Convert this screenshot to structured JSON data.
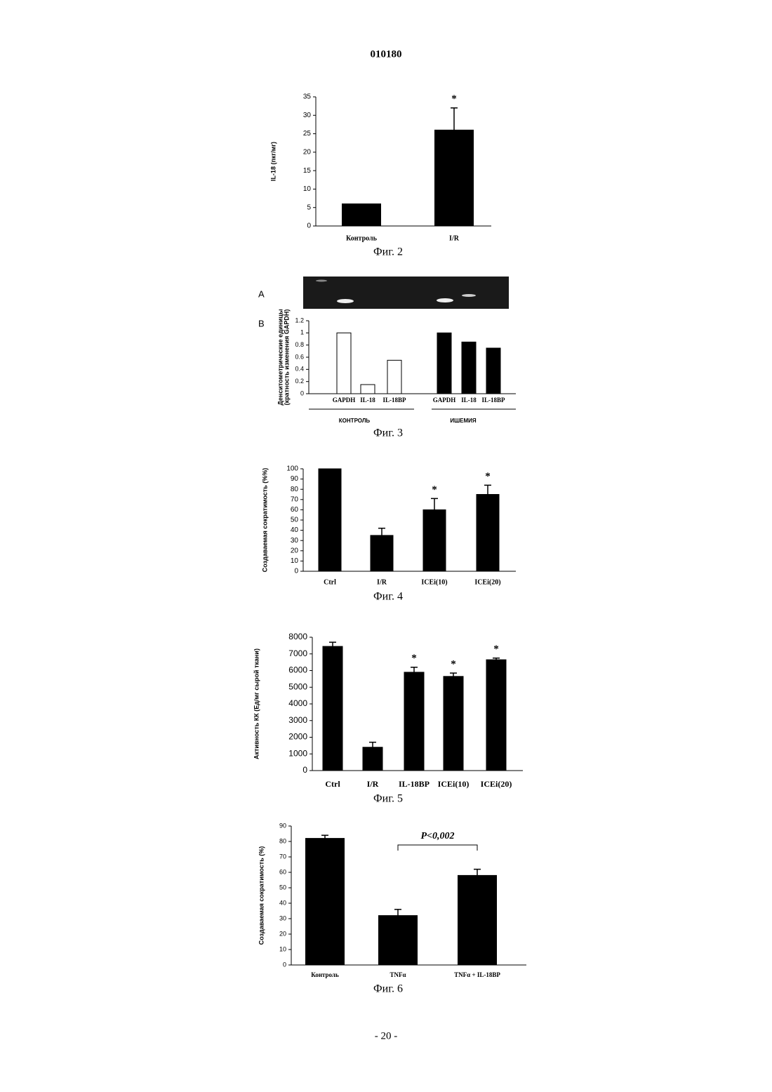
{
  "document_number": "010180",
  "page_number": "- 20 -",
  "chart_data": [
    {
      "type": "bar",
      "caption": "Фиг. 2",
      "ylabel": "IL-18 (пкг/мг)",
      "categories": [
        "Контроль",
        "I/R"
      ],
      "values": [
        6,
        26
      ],
      "errors": [
        null,
        6
      ],
      "significance": [
        null,
        "*"
      ],
      "color": "#000000",
      "ylim": [
        0,
        35
      ],
      "yticks": [
        0,
        5,
        10,
        15,
        20,
        25,
        30,
        35
      ]
    },
    {
      "type": "bar",
      "caption": "Фиг. 3",
      "panel_labels": [
        "A",
        "B"
      ],
      "ylabel": [
        "Денситометрические единицы",
        "(кратность изменения GAPDH)"
      ],
      "categories": [
        "GAPDH",
        "IL-18",
        "IL-18BP",
        "GAPDH",
        "IL-18",
        "IL-18BP"
      ],
      "groups": [
        "КОНТРОЛЬ",
        "ИШЕМИЯ"
      ],
      "values": [
        1,
        0.15,
        0.55,
        1,
        0.85,
        0.75
      ],
      "colors": [
        "#ffffff",
        "#ffffff",
        "#ffffff",
        "#000000",
        "#000000",
        "#000000"
      ],
      "ylim": [
        0,
        1.2
      ],
      "yticks": [
        0,
        0.2,
        0.4,
        0.6,
        0.8,
        1,
        1.2
      ]
    },
    {
      "type": "bar",
      "caption": "Фиг. 4",
      "ylabel": "Создаваемая сократимость (%%)",
      "categories": [
        "Ctrl",
        "I/R",
        "ICEi(10)",
        "ICEi(20)"
      ],
      "values": [
        100,
        35,
        60,
        75
      ],
      "errors": [
        null,
        7,
        11,
        9
      ],
      "significance": [
        null,
        null,
        "*",
        "*"
      ],
      "color": "#000000",
      "ylim": [
        0,
        100
      ],
      "yticks": [
        0,
        10,
        20,
        30,
        40,
        50,
        60,
        70,
        80,
        90,
        100
      ]
    },
    {
      "type": "bar",
      "caption": "Фиг. 5",
      "ylabel": "Активность КК (Ед/мг сырой ткани)",
      "categories": [
        "Ctrl",
        "I/R",
        "IL-18BP",
        "ICEi(10)",
        "ICEi(20)"
      ],
      "values": [
        7450,
        1400,
        5900,
        5650,
        6650
      ],
      "errors": [
        250,
        300,
        300,
        200,
        100
      ],
      "significance": [
        null,
        null,
        "*",
        "*",
        "*"
      ],
      "color": "#000000",
      "ylim": [
        0,
        8000
      ],
      "yticks": [
        0,
        1000,
        2000,
        3000,
        4000,
        5000,
        6000,
        7000,
        8000
      ]
    },
    {
      "type": "bar",
      "caption": "Фиг. 6",
      "ylabel": "Создаваемая сократимость (%)",
      "categories": [
        "Контроль",
        "TNFα",
        "TNFα + IL-18BP"
      ],
      "values": [
        82,
        32,
        58
      ],
      "errors": [
        2,
        4,
        4
      ],
      "comparison_label": "P<0,002",
      "color": "#000000",
      "ylim": [
        0,
        90
      ],
      "yticks": [
        0,
        10,
        20,
        30,
        40,
        50,
        60,
        70,
        80,
        90
      ]
    }
  ]
}
